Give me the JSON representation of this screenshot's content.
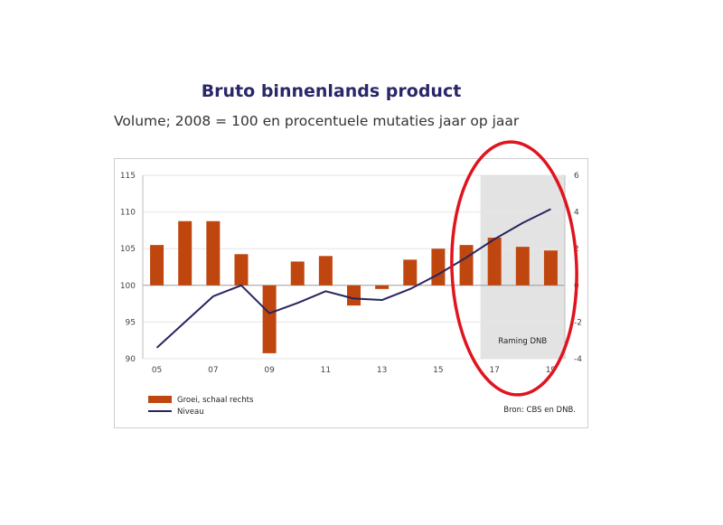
{
  "chart_data": {
    "type": "bar+line",
    "title": "Bruto binnenlands product",
    "subtitle": "Volume; 2008 = 100 en procentuele mutaties jaar op jaar",
    "x": [
      "2005",
      "2006",
      "2007",
      "2008",
      "2009",
      "2010",
      "2011",
      "2012",
      "2013",
      "2014",
      "2015",
      "2016",
      "2017",
      "2018",
      "2019"
    ],
    "x_tick_labels": [
      "05",
      "07",
      "09",
      "11",
      "13",
      "15",
      "17",
      "19"
    ],
    "left_axis": {
      "ticks": [
        "90",
        "95",
        "100",
        "105",
        "110",
        "115"
      ],
      "range": [
        90,
        115
      ]
    },
    "right_axis": {
      "ticks": [
        "-4",
        "-2",
        "0",
        "2",
        "4",
        "6"
      ],
      "range": [
        -4,
        6
      ]
    },
    "series": [
      {
        "name": "Groei, schaal rechts",
        "kind": "bar",
        "axis": "right",
        "color": "#c0460f",
        "values": [
          2.2,
          3.5,
          3.5,
          1.7,
          -3.7,
          1.3,
          1.6,
          -1.1,
          -0.2,
          1.4,
          2.0,
          2.2,
          2.6,
          2.1,
          1.9
        ]
      },
      {
        "name": "Niveau",
        "kind": "line",
        "axis": "left",
        "color": "#27255f",
        "values": [
          91.5,
          95.0,
          98.5,
          100.0,
          96.2,
          97.6,
          99.2,
          98.2,
          98.0,
          99.5,
          101.5,
          103.8,
          106.3,
          108.5,
          110.4
        ]
      }
    ],
    "forecast": {
      "label": "Raming DNB",
      "from": "2017",
      "to": "2019",
      "color": "#e3e3e3"
    },
    "legend": {
      "position": "bottom-left"
    },
    "source": "Bron: CBS en DNB.",
    "annotation": {
      "shape": "ellipse",
      "color": "#e0141e",
      "around": "forecast"
    }
  }
}
